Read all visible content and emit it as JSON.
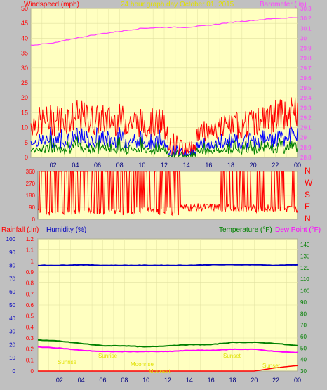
{
  "header": {
    "left_label": "Windspeed (mph)",
    "center_label": "24 hour graph day   October 01, 2015",
    "right_label": "Barometer ( in)"
  },
  "colors": {
    "plot_bg": "#ffffc0",
    "frame_bg": "#c0c0c0",
    "wind_gust": "#ff0000",
    "wind_avg": "#0000ff",
    "wind_low": "#008000",
    "barometer": "#ff40ff",
    "direction": "#ff0000",
    "humidity": "#0000c0",
    "temperature": "#008000",
    "dewpoint": "#ff00ff",
    "rainfall": "#ff0000",
    "sun_labels": "#e0e000",
    "axis_text": "#000080"
  },
  "x_ticks": [
    "02",
    "04",
    "06",
    "08",
    "10",
    "12",
    "14",
    "16",
    "18",
    "20",
    "22",
    "00"
  ],
  "panel_wind": {
    "left_axis": {
      "min": 0,
      "max": 50,
      "ticks": [
        "0",
        "5",
        "10",
        "15",
        "20",
        "25",
        "30",
        "35",
        "40",
        "45",
        "50"
      ]
    },
    "right_axis": {
      "min": 28.8,
      "max": 30.3,
      "ticks": [
        "28.8",
        "28.9",
        "29",
        "29.1",
        "29.2",
        "29.3",
        "29.4",
        "29.5",
        "29.6",
        "29.7",
        "29.8",
        "29.9",
        "30",
        "30.1",
        "30.2",
        "30.3"
      ]
    }
  },
  "panel_direction": {
    "left_axis": {
      "min": 0,
      "max": 360,
      "ticks": [
        "0",
        "90",
        "180",
        "270",
        "360"
      ]
    },
    "right_labels": [
      "N",
      "W",
      "S",
      "E",
      "N"
    ]
  },
  "panel_climate": {
    "labels": {
      "rainfall": "Rainfall (.in)",
      "humidity": "Humidity (%)",
      "temperature": "Temperature (°F)",
      "dewpoint": "Dew Point (°F)"
    },
    "humidity_axis": {
      "min": 0,
      "max": 100,
      "ticks": [
        "0",
        "10",
        "20",
        "30",
        "40",
        "50",
        "60",
        "70",
        "80",
        "90",
        "100"
      ]
    },
    "rain_axis": {
      "min": 0,
      "max": 1.2,
      "ticks": [
        "0",
        "0.1",
        "0.2",
        "0.3",
        "0.4",
        "0.5",
        "0.6",
        "0.7",
        "0.8",
        "0.9",
        "1",
        "1.1",
        "1.2"
      ]
    },
    "temp_axis": {
      "min": 30,
      "max": 145,
      "ticks": [
        "30",
        "40",
        "50",
        "60",
        "70",
        "80",
        "90",
        "100",
        "110",
        "120",
        "130",
        "140"
      ]
    },
    "sun_labels": [
      "Sunrise",
      "Sunrise",
      "Moonrise",
      "Moonset",
      "Sunset",
      "Sunset"
    ]
  },
  "chart_data": [
    {
      "type": "line",
      "title": "24 hour graph day   October 01, 2015",
      "x": [
        "00",
        "02",
        "04",
        "06",
        "08",
        "10",
        "12",
        "14",
        "16",
        "18",
        "20",
        "22",
        "24"
      ],
      "series": [
        {
          "name": "Windspeed (mph)",
          "axis": "left",
          "values": [
            11,
            12,
            13,
            12,
            12,
            11,
            11,
            6,
            9,
            10,
            11,
            13,
            14
          ]
        },
        {
          "name": "Barometer ( in)",
          "axis": "right",
          "values": [
            29.93,
            29.95,
            30.0,
            30.04,
            30.07,
            30.1,
            30.11,
            30.11,
            30.13,
            30.16,
            30.18,
            30.2,
            30.21
          ]
        }
      ],
      "ylim_left": [
        0,
        50
      ],
      "ylim_right": [
        28.8,
        30.3
      ]
    },
    {
      "type": "line",
      "x": [
        "00",
        "02",
        "04",
        "06",
        "08",
        "10",
        "12",
        "14",
        "16",
        "18",
        "20",
        "22",
        "24"
      ],
      "series": [
        {
          "values": [
            210,
            200,
            240,
            230,
            220,
            240,
            150,
            60,
            80,
            70,
            90,
            100,
            60
          ]
        }
      ],
      "ylim": [
        0,
        360
      ]
    },
    {
      "type": "line",
      "x": [
        "00",
        "02",
        "04",
        "06",
        "08",
        "10",
        "12",
        "14",
        "16",
        "18",
        "20",
        "22",
        "24"
      ],
      "series": [
        {
          "name": "Humidity (%)",
          "axis": "humidity",
          "values": [
            80,
            80,
            80.5,
            80,
            80,
            80,
            80,
            80,
            80.5,
            80.5,
            80.5,
            80,
            80.5
          ]
        },
        {
          "name": "Temperature (°F)",
          "axis": "temp",
          "values": [
            57,
            56,
            54,
            52,
            52,
            51,
            52,
            53,
            53,
            55,
            55,
            54,
            52
          ]
        },
        {
          "name": "Dew Point (°F)",
          "axis": "temp",
          "values": [
            51,
            50,
            48,
            47,
            47,
            47,
            47,
            48,
            48,
            49,
            49,
            47,
            46
          ]
        },
        {
          "name": "Rainfall (.in)",
          "axis": "rain",
          "values": [
            0,
            0,
            0,
            0,
            0,
            0,
            0,
            0,
            0,
            0,
            0,
            0.03,
            0.05
          ]
        }
      ],
      "ylim_humidity": [
        0,
        100
      ],
      "ylim_rain": [
        0,
        1.2
      ],
      "ylim_temp": [
        30,
        145
      ]
    }
  ]
}
